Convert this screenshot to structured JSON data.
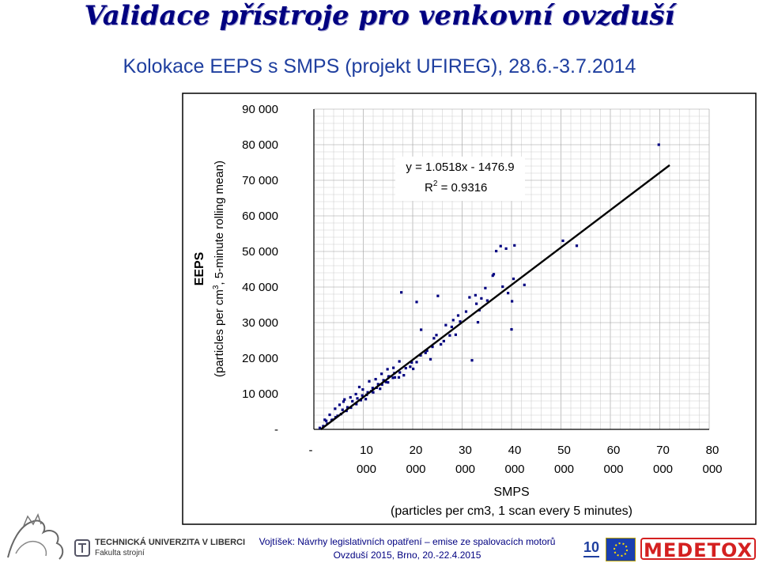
{
  "header": {
    "title": "Validace přístroje pro venkovní ovzduší",
    "subtitle": "Kolokace EEPS s SMPS (projekt UFIREG), 28.6.-3.7.2014"
  },
  "chart_data": {
    "type": "scatter",
    "xlabel": "SMPS",
    "xlabel_sub": "(particles per cm3, 1 scan every 5 minutes)",
    "ylabel": "EEPS",
    "ylabel_sub_prefix": "(particles per cm",
    "ylabel_sub_sup": "3",
    "ylabel_sub_suffix": ", 5-minute rolling mean)",
    "xlim": [
      0,
      80000
    ],
    "ylim": [
      0,
      90000
    ],
    "x_ticks": [
      {
        "top": "-",
        "bottom": ""
      },
      {
        "top": "10",
        "bottom": "000"
      },
      {
        "top": "20",
        "bottom": "000"
      },
      {
        "top": "30",
        "bottom": "000"
      },
      {
        "top": "40",
        "bottom": "000"
      },
      {
        "top": "50",
        "bottom": "000"
      },
      {
        "top": "60",
        "bottom": "000"
      },
      {
        "top": "70",
        "bottom": "000"
      },
      {
        "top": "80",
        "bottom": "000"
      }
    ],
    "y_ticks": [
      "-",
      "10 000",
      "20 000",
      "30 000",
      "40 000",
      "50 000",
      "60 000",
      "70 000",
      "80 000",
      "90 000"
    ],
    "grid": true,
    "equation": "y = 1.0518x - 1476.9",
    "r2_prefix": "R",
    "r2_sup": "2",
    "r2_value": " = 0.9316",
    "trendline": {
      "slope": 1.0518,
      "intercept": -1476.9,
      "x_start": 1404,
      "x_end": 72000
    },
    "series": [
      {
        "color": "#000080",
        "points": [
          [
            69800,
            80000
          ],
          [
            50400,
            53000
          ],
          [
            53200,
            51600
          ],
          [
            37800,
            51500
          ],
          [
            36900,
            50100
          ],
          [
            40600,
            51700
          ],
          [
            38900,
            50800
          ],
          [
            36200,
            43200
          ],
          [
            36400,
            43600
          ],
          [
            40400,
            42300
          ],
          [
            42600,
            40600
          ],
          [
            34700,
            39700
          ],
          [
            38200,
            40100
          ],
          [
            39300,
            38300
          ],
          [
            17700,
            38500
          ],
          [
            20800,
            35800
          ],
          [
            25100,
            37500
          ],
          [
            31500,
            37100
          ],
          [
            32700,
            37700
          ],
          [
            33900,
            36800
          ],
          [
            35100,
            36200
          ],
          [
            40100,
            36000
          ],
          [
            32900,
            35300
          ],
          [
            33500,
            33500
          ],
          [
            30800,
            33100
          ],
          [
            29200,
            32000
          ],
          [
            28200,
            30700
          ],
          [
            29600,
            30300
          ],
          [
            33200,
            30100
          ],
          [
            40000,
            28100
          ],
          [
            21700,
            28000
          ],
          [
            26700,
            29300
          ],
          [
            27900,
            28800
          ],
          [
            28700,
            26600
          ],
          [
            24800,
            26500
          ],
          [
            24300,
            25600
          ],
          [
            25700,
            23900
          ],
          [
            22900,
            22100
          ],
          [
            21600,
            20800
          ],
          [
            23600,
            19700
          ],
          [
            32000,
            19400
          ],
          [
            20800,
            18900
          ],
          [
            19500,
            17600
          ],
          [
            20100,
            17000
          ],
          [
            18200,
            15200
          ],
          [
            17200,
            14600
          ],
          [
            16400,
            14600
          ],
          [
            15100,
            14800
          ],
          [
            15000,
            13200
          ],
          [
            13800,
            12600
          ],
          [
            12700,
            11700
          ],
          [
            11600,
            10700
          ],
          [
            10700,
            9700
          ],
          [
            9500,
            8200
          ],
          [
            8600,
            7100
          ],
          [
            7500,
            6100
          ],
          [
            6600,
            5200
          ],
          [
            5500,
            4300
          ],
          [
            4400,
            3400
          ],
          [
            3600,
            2600
          ],
          [
            2700,
            1600
          ],
          [
            1900,
            900
          ],
          [
            1200,
            400
          ],
          [
            2500,
            2400
          ],
          [
            3800,
            2700
          ],
          [
            4800,
            3800
          ],
          [
            5800,
            5500
          ],
          [
            6800,
            6200
          ],
          [
            7800,
            7900
          ],
          [
            8800,
            8700
          ],
          [
            9800,
            9500
          ],
          [
            10900,
            10400
          ],
          [
            11900,
            11600
          ],
          [
            13000,
            12700
          ],
          [
            14100,
            13800
          ],
          [
            15200,
            14900
          ],
          [
            16300,
            15800
          ],
          [
            9900,
            11200
          ],
          [
            8500,
            9900
          ],
          [
            7400,
            9000
          ],
          [
            10500,
            8500
          ],
          [
            12000,
            10400
          ],
          [
            13400,
            11400
          ],
          [
            14600,
            13300
          ],
          [
            16000,
            14500
          ],
          [
            17400,
            16000
          ],
          [
            18600,
            17200
          ],
          [
            19800,
            18800
          ],
          [
            22600,
            21500
          ],
          [
            24000,
            23200
          ],
          [
            26300,
            24800
          ],
          [
            27500,
            26400
          ],
          [
            6000,
            7800
          ],
          [
            5200,
            6900
          ],
          [
            4300,
            5800
          ],
          [
            3200,
            4100
          ],
          [
            2200,
            2700
          ],
          [
            11200,
            13500
          ],
          [
            12500,
            14100
          ],
          [
            13700,
            15600
          ],
          [
            14900,
            16900
          ],
          [
            16100,
            17300
          ],
          [
            17300,
            19100
          ],
          [
            9200,
            11900
          ],
          [
            6200,
            8400
          ]
        ]
      }
    ]
  },
  "footer": {
    "university": "TECHNICKÁ UNIVERZITA V LIBERCI",
    "faculty": "Fakulta strojní",
    "line1": "Vojtíšek: Návrhy legislativních opatření – emise ze spalovacích motorů",
    "line2": "Ovzduší 2015, Brno, 20.-22.4.2015",
    "page_number": "10",
    "brand": "MEDETOX"
  },
  "icons": [
    "lion-emblem-icon",
    "eu-flag-icon"
  ]
}
